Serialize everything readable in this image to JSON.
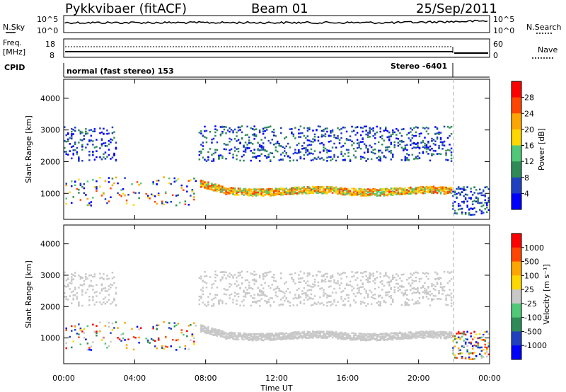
{
  "header": {
    "radar": "Pykkvibaer (fitACF)",
    "beam": "Beam 01",
    "date": "25/Sep/2011"
  },
  "noise_panel": {
    "left_label": "N.Sky",
    "right_label": "N.Search",
    "ticks": [
      "10^5",
      "10^0"
    ]
  },
  "freq_panel": {
    "left_label_1": "Freq.",
    "left_label_2": "[MHz]",
    "left_ticks": [
      "18",
      "8"
    ],
    "right_label": "Nave",
    "right_ticks": [
      "60",
      "0"
    ]
  },
  "cpid_panel": {
    "label": "CPID",
    "program_1": "normal (fast stereo) 153",
    "program_2": "Stereo -6401"
  },
  "x_axis": {
    "label": "Time UT",
    "ticks": [
      "00:00",
      "04:00",
      "08:00",
      "12:00",
      "16:00",
      "20:00",
      "00:00"
    ]
  },
  "power_panel": {
    "ylabel": "Slant Range [km]",
    "yticks": [
      "4000",
      "3000",
      "2000",
      "1000"
    ],
    "cbar_label": "Power [dB]",
    "cbar_ticks": [
      "28",
      "24",
      "20",
      "16",
      "12",
      "8",
      "4"
    ]
  },
  "velocity_panel": {
    "ylabel": "Slant Range [km]",
    "yticks": [
      "4000",
      "3000",
      "2000",
      "1000"
    ],
    "cbar_label": "Velocity [m s⁻¹]",
    "cbar_ticks": [
      "1000",
      "500",
      "100",
      "25",
      "-25",
      "-100",
      "-500",
      "-1000"
    ]
  },
  "chart_data": {
    "type": "heatmap",
    "title": "Pykkvibaer (fitACF)",
    "subtitle": "Beam 01",
    "date": "25/Sep/2011",
    "xlabel": "Time UT",
    "x_range_hours": [
      0,
      24
    ],
    "y_range_km": [
      180,
      4600
    ],
    "cpid_change_hour": 21.9,
    "power_colors": [
      "#0000ff",
      "#2040c0",
      "#2e8b57",
      "#50c878",
      "#ffd700",
      "#ffa500",
      "#ff4500",
      "#ff0000"
    ],
    "power_levels": [
      4,
      8,
      12,
      16,
      20,
      24,
      28
    ],
    "velocity_colors": [
      "#0000ff",
      "#2040c0",
      "#2e8b57",
      "#50c878",
      "#c8c8c8",
      "#ffd700",
      "#ffa500",
      "#ff4500",
      "#ff0000"
    ],
    "velocity_levels": [
      1000,
      500,
      100,
      25,
      -25,
      -100,
      -500,
      -1000
    ]
  }
}
